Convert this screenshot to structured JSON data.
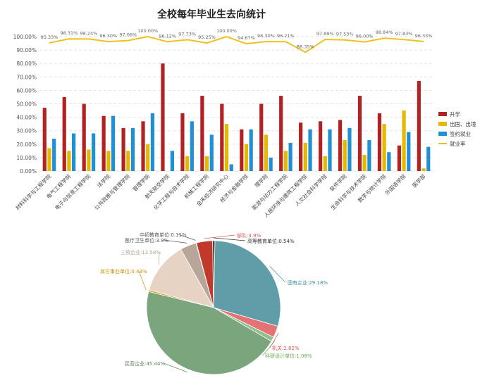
{
  "chart_data": [
    {
      "type": "bar",
      "title": "全校每年毕业生去向统计",
      "categories": [
        "材料科学与工程学院",
        "电气工程学院",
        "电子与信息工程学院",
        "法学院",
        "公共政策与管理学院",
        "管理学院",
        "航天航空学院",
        "化学工程与技术学院",
        "机械工程学院",
        "金禾经济研究中心",
        "经济与金融学院",
        "理学院",
        "能源与动力工程学院",
        "人居环境与建筑工程学院",
        "人文社会科学学院",
        "软件学院",
        "生命科学与技术学院",
        "数学与统计学院",
        "外国语学院",
        "医学部"
      ],
      "ylim": [
        0,
        100
      ],
      "yticks": [
        "0.00%",
        "10.00%",
        "20.00%",
        "30.00%",
        "40.00%",
        "50.00%",
        "60.00%",
        "70.00%",
        "80.00%",
        "90.00%",
        "100.00%"
      ],
      "legend_position": "right",
      "grid": true,
      "series": [
        {
          "name": "升学",
          "color": "#b22222",
          "values": [
            47,
            55,
            50,
            41,
            32,
            37,
            80,
            43,
            56,
            50,
            31,
            50,
            56,
            36,
            37,
            38,
            56,
            43,
            19,
            67
          ]
        },
        {
          "name": "出国、出境",
          "color": "#e6b800",
          "values": [
            17,
            15,
            16,
            15,
            15,
            20,
            0,
            11,
            11,
            35,
            20,
            27,
            15,
            21,
            11,
            23,
            12,
            35,
            45,
            2
          ]
        },
        {
          "name": "签约就业",
          "color": "#1f8fd6",
          "values": [
            24,
            28,
            28,
            41,
            32,
            43,
            15,
            37,
            27,
            5,
            31,
            10,
            21,
            31,
            31,
            32,
            23,
            14,
            29,
            18
          ]
        },
        {
          "name": "就业率",
          "color": "#f2c01e",
          "type": "line",
          "values": [
            95.33,
            98.31,
            98.24,
            96.3,
            97.06,
            100.0,
            96.12,
            97.73,
            95.25,
            100.0,
            94.67,
            96.3,
            96.21,
            88.35,
            97.89,
            97.53,
            96.0,
            98.84,
            97.83,
            96.33
          ],
          "labels": [
            "95.33%",
            "98.31%",
            "98.24%",
            "96.30%",
            "97.06%",
            "100.00%",
            "96.12%",
            "97.73%",
            "95.25%",
            "100.00%",
            "94.67%",
            "96.30%",
            "96.21%",
            "88.35%",
            "97.89%",
            "97.53%",
            "96.00%",
            "98.84%",
            "97.83%",
            "96.33%"
          ]
        }
      ]
    },
    {
      "type": "pie",
      "slices": [
        {
          "label": "国有企业:29.18%",
          "value": 29.18,
          "color": "#5f9ea8",
          "label_color": "#3f8a9a"
        },
        {
          "label": "机关:2.82%",
          "value": 2.82,
          "color": "#e57373",
          "label_color": "#d9534f"
        },
        {
          "label": "科研设计单位:1.08%",
          "value": 1.08,
          "color": "#8fbf8f",
          "label_color": "#6aa84f"
        },
        {
          "label": "民营企业:45.44%",
          "value": 45.44,
          "color": "#7ba57c",
          "label_color": "#5c8a5d"
        },
        {
          "label": "其它事业单位:0.43%",
          "value": 0.43,
          "color": "#e0a030",
          "label_color": "#d08c00"
        },
        {
          "label": "三资企业:12.58%",
          "value": 12.58,
          "color": "#e6d3c4",
          "label_color": "#b0a090"
        },
        {
          "label": "医疗卫生单位:3.9%",
          "value": 3.9,
          "color": "#b8a69a",
          "label_color": "#555555"
        },
        {
          "label": "中初教育单位:0.11%",
          "value": 0.11,
          "color": "#9a8a80",
          "label_color": "#555555"
        },
        {
          "label": "部队:3.9%",
          "value": 3.9,
          "color": "#c0392b",
          "label_color": "#d9534f"
        },
        {
          "label": "高等教育单位:0.54%",
          "value": 0.54,
          "color": "#3a3a3a",
          "label_color": "#333333"
        }
      ]
    }
  ]
}
